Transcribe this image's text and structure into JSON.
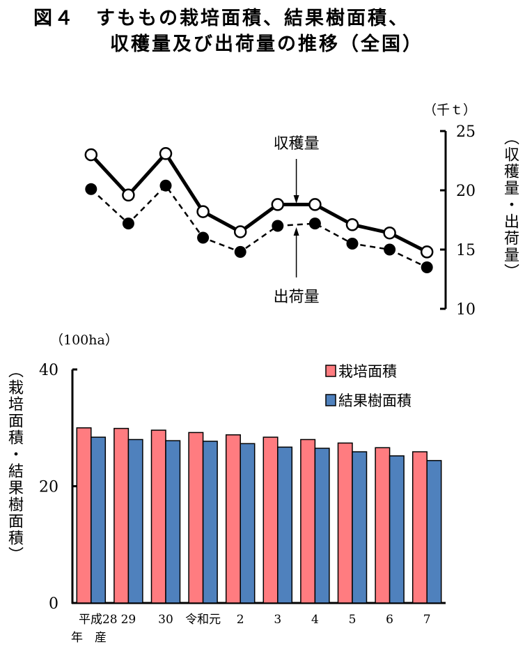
{
  "title": {
    "line1": "図４　すももの栽培面積、結果樹面積、",
    "line2": "収穫量及び出荷量の推移（全国）"
  },
  "chart_data": [
    {
      "type": "line",
      "categories": [
        "平成28",
        "29",
        "30",
        "令和元",
        "2",
        "3",
        "4",
        "5",
        "6",
        "7"
      ],
      "unit": "（千ｔ）",
      "ylabel": "（収穫量・出荷量）",
      "ylim": [
        10,
        25
      ],
      "yticks": [
        10,
        15,
        20,
        25
      ],
      "y_axis_side": "right",
      "series": [
        {
          "name": "収穫量",
          "style": "solid-open-circle",
          "values": [
            23.0,
            19.6,
            23.1,
            18.2,
            16.5,
            18.8,
            18.8,
            17.1,
            16.4,
            14.8
          ]
        },
        {
          "name": "出荷量",
          "style": "dashed-filled-circle",
          "values": [
            20.1,
            17.2,
            20.4,
            16.0,
            14.8,
            17.0,
            17.2,
            15.5,
            15.0,
            13.5
          ]
        }
      ],
      "annotations": [
        "収穫量",
        "出荷量"
      ]
    },
    {
      "type": "bar",
      "categories": [
        "平成28",
        "29",
        "30",
        "令和元",
        "2",
        "3",
        "4",
        "5",
        "6",
        "7"
      ],
      "xlabel_sub": "年　産",
      "unit": "（100ha）",
      "ylabel": "（栽培面積・結果樹面積）",
      "ylim": [
        0,
        40
      ],
      "yticks": [
        0,
        20,
        40
      ],
      "legend_position": "top-right",
      "series": [
        {
          "name": "栽培面積",
          "color": "#ff7c80",
          "values": [
            30.0,
            29.9,
            29.6,
            29.2,
            28.8,
            28.4,
            28.0,
            27.4,
            26.6,
            25.9
          ]
        },
        {
          "name": "結果樹面積",
          "color": "#4f81bd",
          "values": [
            28.4,
            28.0,
            27.8,
            27.7,
            27.3,
            26.7,
            26.5,
            25.9,
            25.2,
            24.4
          ]
        }
      ]
    }
  ]
}
